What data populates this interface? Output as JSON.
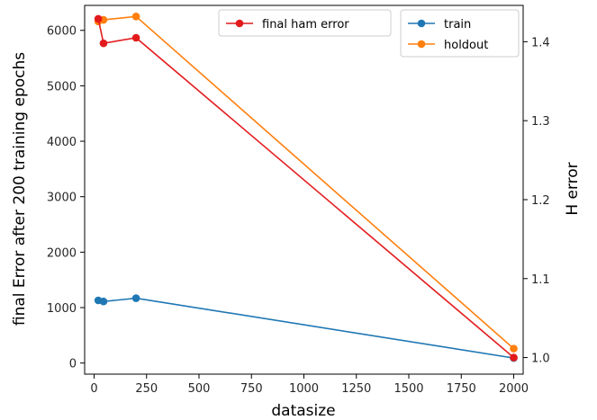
{
  "chart_data": {
    "type": "line",
    "xlabel": "datasize",
    "ylabel_left": "final Error after 200 training epochs",
    "ylabel_right": "H error",
    "ylabel_right_color": "#ff0000",
    "xlim": [
      -45,
      2045
    ],
    "ylim_left": [
      -200,
      6450
    ],
    "ylim_right": [
      0.979,
      1.446
    ],
    "x_ticks": [
      0,
      250,
      500,
      750,
      1000,
      1250,
      1500,
      1750,
      2000
    ],
    "y_ticks_left": [
      0,
      1000,
      2000,
      3000,
      4000,
      5000,
      6000
    ],
    "y_ticks_right": [
      1.0,
      1.1,
      1.2,
      1.3,
      1.4
    ],
    "grid": false,
    "left_series": [
      {
        "name": "train",
        "color": "#1f77b4",
        "x": [
          20,
          45,
          200,
          2000
        ],
        "y": [
          1130,
          1110,
          1170,
          90
        ]
      },
      {
        "name": "holdout",
        "color": "#ff7f0e",
        "x": [
          20,
          45,
          200,
          2000
        ],
        "y": [
          6160,
          6190,
          6250,
          260
        ]
      }
    ],
    "right_series": [
      {
        "name": "final ham error",
        "color": "#e31a1c",
        "x": [
          20,
          45,
          200,
          2000
        ],
        "y": [
          1.429,
          1.398,
          1.405,
          1.0
        ]
      }
    ],
    "legends": [
      {
        "placement": "upper-center",
        "entries": [
          "final ham error"
        ]
      },
      {
        "placement": "upper-right",
        "entries": [
          "train",
          "holdout"
        ]
      }
    ]
  }
}
